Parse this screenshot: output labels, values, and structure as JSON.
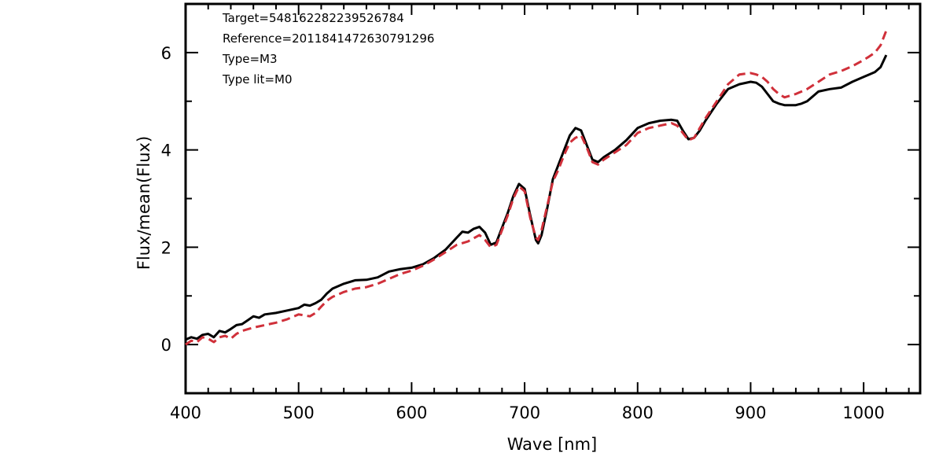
{
  "chart_data": {
    "type": "line",
    "xlabel": "Wave [nm]",
    "ylabel": "Flux/mean(Flux)",
    "xlim": [
      400,
      1050
    ],
    "ylim": [
      -1,
      7
    ],
    "x_ticks": [
      400,
      500,
      600,
      700,
      800,
      900,
      1000
    ],
    "y_ticks": [
      0,
      2,
      4,
      6
    ],
    "x_tick_labels": [
      "400",
      "500",
      "600",
      "700",
      "800",
      "900",
      "1000"
    ],
    "y_tick_labels": [
      "0",
      "2",
      "4",
      "6"
    ],
    "grid": false,
    "annotations": [
      "Target=548162282239526784",
      "Reference=2011841472630791296",
      "Type=M3",
      "Type lit=M0"
    ],
    "series": [
      {
        "color": "#000000",
        "dash": "solid",
        "x": [
          400,
          405,
          410,
          415,
          420,
          425,
          430,
          435,
          440,
          445,
          450,
          455,
          460,
          465,
          470,
          480,
          490,
          500,
          505,
          510,
          515,
          520,
          525,
          530,
          540,
          550,
          560,
          570,
          580,
          590,
          600,
          610,
          620,
          630,
          640,
          645,
          650,
          655,
          660,
          665,
          670,
          675,
          680,
          685,
          690,
          695,
          700,
          705,
          710,
          712,
          715,
          720,
          725,
          730,
          735,
          740,
          745,
          750,
          755,
          760,
          765,
          770,
          780,
          790,
          800,
          810,
          820,
          830,
          835,
          840,
          845,
          850,
          855,
          860,
          870,
          880,
          890,
          900,
          905,
          910,
          915,
          920,
          925,
          930,
          940,
          945,
          950,
          960,
          970,
          980,
          990,
          1000,
          1005,
          1010,
          1015,
          1020
        ],
        "y": [
          0.1,
          0.15,
          0.12,
          0.2,
          0.22,
          0.15,
          0.28,
          0.25,
          0.32,
          0.4,
          0.42,
          0.5,
          0.58,
          0.55,
          0.62,
          0.65,
          0.7,
          0.75,
          0.82,
          0.8,
          0.85,
          0.92,
          1.05,
          1.15,
          1.25,
          1.32,
          1.33,
          1.38,
          1.5,
          1.55,
          1.58,
          1.65,
          1.78,
          1.95,
          2.2,
          2.32,
          2.3,
          2.38,
          2.42,
          2.3,
          2.05,
          2.1,
          2.4,
          2.7,
          3.05,
          3.3,
          3.2,
          2.65,
          2.15,
          2.08,
          2.25,
          2.8,
          3.4,
          3.7,
          4.0,
          4.3,
          4.45,
          4.4,
          4.1,
          3.8,
          3.75,
          3.85,
          4.0,
          4.2,
          4.45,
          4.55,
          4.6,
          4.62,
          4.6,
          4.4,
          4.22,
          4.25,
          4.4,
          4.6,
          4.95,
          5.25,
          5.35,
          5.4,
          5.38,
          5.3,
          5.15,
          5.0,
          4.95,
          4.92,
          4.92,
          4.95,
          5.0,
          5.2,
          5.25,
          5.28,
          5.4,
          5.5,
          5.55,
          5.6,
          5.7,
          5.95
        ]
      },
      {
        "color": "#d0303a",
        "dash": "dashed",
        "x": [
          400,
          405,
          410,
          415,
          420,
          425,
          430,
          435,
          440,
          445,
          450,
          460,
          470,
          480,
          490,
          500,
          505,
          510,
          515,
          520,
          525,
          530,
          540,
          550,
          560,
          570,
          580,
          590,
          600,
          610,
          620,
          630,
          640,
          650,
          660,
          665,
          670,
          675,
          680,
          685,
          690,
          695,
          700,
          705,
          710,
          712,
          715,
          720,
          725,
          730,
          735,
          740,
          745,
          750,
          755,
          760,
          765,
          770,
          780,
          790,
          800,
          810,
          820,
          830,
          835,
          840,
          845,
          850,
          855,
          860,
          870,
          880,
          890,
          900,
          905,
          910,
          915,
          920,
          925,
          930,
          940,
          950,
          960,
          970,
          980,
          990,
          1000,
          1005,
          1010,
          1015,
          1020
        ],
        "y": [
          0.0,
          0.08,
          0.05,
          0.15,
          0.12,
          0.05,
          0.15,
          0.18,
          0.12,
          0.22,
          0.28,
          0.35,
          0.4,
          0.45,
          0.52,
          0.62,
          0.6,
          0.58,
          0.65,
          0.78,
          0.9,
          0.98,
          1.08,
          1.15,
          1.18,
          1.25,
          1.35,
          1.45,
          1.52,
          1.62,
          1.75,
          1.9,
          2.05,
          2.12,
          2.25,
          2.15,
          2.0,
          2.05,
          2.35,
          2.65,
          3.0,
          3.25,
          3.15,
          2.6,
          2.2,
          2.15,
          2.35,
          2.85,
          3.35,
          3.6,
          3.9,
          4.15,
          4.25,
          4.3,
          4.05,
          3.75,
          3.7,
          3.8,
          3.95,
          4.1,
          4.35,
          4.45,
          4.5,
          4.55,
          4.5,
          4.35,
          4.2,
          4.25,
          4.45,
          4.65,
          5.0,
          5.35,
          5.55,
          5.58,
          5.55,
          5.5,
          5.4,
          5.25,
          5.15,
          5.08,
          5.15,
          5.25,
          5.4,
          5.55,
          5.62,
          5.72,
          5.85,
          5.92,
          6.0,
          6.15,
          6.45
        ]
      }
    ]
  }
}
